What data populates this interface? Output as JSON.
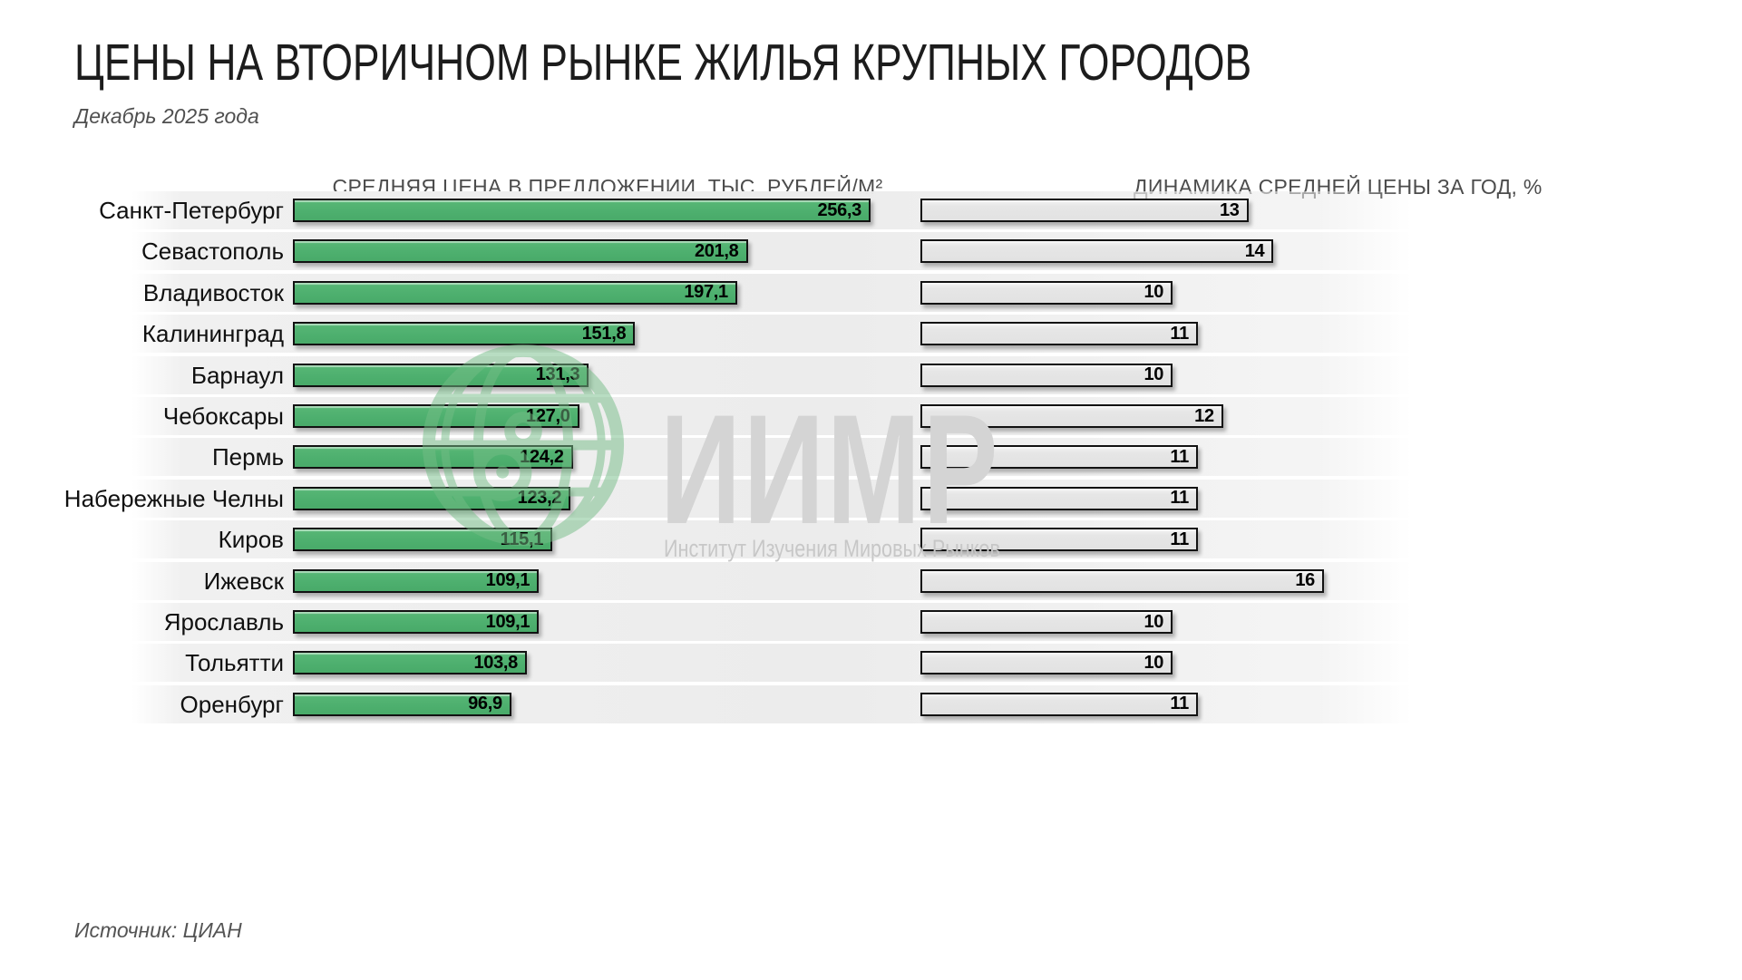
{
  "header": {
    "title": "ЦЕНЫ НА ВТОРИЧНОМ РЫНКЕ ЖИЛЬЯ КРУПНЫХ ГОРОДОВ",
    "subtitle": "Декабрь 2025 года"
  },
  "watermark": {
    "logo_text": "ИИМР",
    "logo_subtext": "Институт Изучения Мировых Рынков",
    "globe_icon": "globe-icon"
  },
  "footer": {
    "source": "Источник: ЦИАН"
  },
  "colors": {
    "bar_green": "#4daf6e",
    "bar_gray": "#e3e3e3",
    "bar_border": "#121212",
    "row_band": "#ececec",
    "watermark_gray": "#d4d4d4",
    "watermark_green": "#74bd86"
  },
  "chart_data": {
    "type": "bar",
    "orientation": "horizontal",
    "grid": false,
    "legend": "none",
    "title": "ЦЕНЫ НА ВТОРИЧНОМ РЫНКЕ ЖИЛЬЯ КРУПНЫХ ГОРОДОВ",
    "subtitle": "Декабрь 2025 года",
    "categories": [
      "Санкт-Петербург",
      "Севастополь",
      "Владивосток",
      "Калининград",
      "Барнаул",
      "Чебоксары",
      "Пермь",
      "Набережные Челны",
      "Киров",
      "Ижевск",
      "Ярославль",
      "Тольятти",
      "Оренбург"
    ],
    "series": [
      {
        "name": "СРЕДНЯЯ ЦЕНА В ПРЕДЛОЖЕНИИ, ТЫС. РУБЛЕЙ/М²",
        "values": [
          256.3,
          201.8,
          197.1,
          151.8,
          131.3,
          127.0,
          124.2,
          123.2,
          115.1,
          109.1,
          109.1,
          103.8,
          96.9
        ],
        "labels": [
          "256,3",
          "201,8",
          "197,1",
          "151,8",
          "131,3",
          "127,0",
          "124,2",
          "123,2",
          "115,1",
          "109,1",
          "109,1",
          "103,8",
          "96,9"
        ],
        "xlim": [
          0,
          260
        ]
      },
      {
        "name": "ДИНАМИКА СРЕДНЕЙ ЦЕНЫ ЗА ГОД, %",
        "values": [
          13,
          14,
          10,
          11,
          10,
          12,
          11,
          11,
          11,
          16,
          10,
          10,
          11
        ],
        "labels": [
          "13",
          "14",
          "10",
          "11",
          "10",
          "12",
          "11",
          "11",
          "11",
          "16",
          "10",
          "10",
          "11"
        ],
        "xlim": [
          0,
          16
        ]
      }
    ]
  }
}
